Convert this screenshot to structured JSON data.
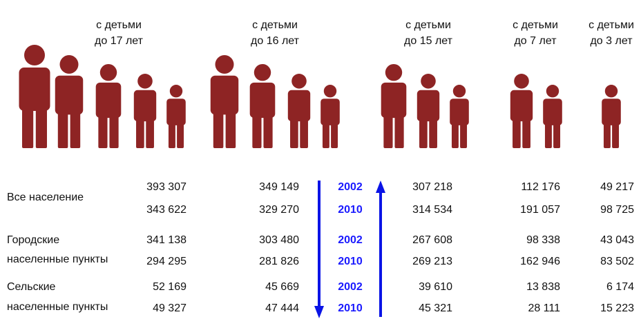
{
  "header": {
    "columns": [
      [
        "с детьми",
        "до 17 лет"
      ],
      [
        "с детьми",
        "до 16 лет"
      ],
      [
        "с детьми",
        "до 15 лет"
      ],
      [
        "с детьми",
        "до 7 лет"
      ],
      [
        "с детьми",
        "до 3 лет"
      ]
    ]
  },
  "rows": [
    {
      "label": [
        "Все население"
      ],
      "years": [
        "2002",
        "2010"
      ],
      "values": [
        [
          "393 307",
          "349 149",
          "307 218",
          "112 176",
          "49 217"
        ],
        [
          "343 622",
          "329 270",
          "314 534",
          "191 057",
          "98 725"
        ]
      ]
    },
    {
      "label": [
        "Городские",
        "населенные пункты"
      ],
      "years": [
        "2002",
        "2010"
      ],
      "values": [
        [
          "341 138",
          "303 480",
          "267 608",
          "98 338",
          "43 043"
        ],
        [
          "294 295",
          "281 826",
          "269 213",
          "162 946",
          "83 502"
        ]
      ]
    },
    {
      "label": [
        "Сельские",
        "населенные пункты"
      ],
      "years": [
        "2002",
        "2010"
      ],
      "values": [
        [
          "52 169",
          "45 669",
          "39 610",
          "13 838",
          "6 174"
        ],
        [
          "49 327",
          "47 444",
          "45 321",
          "28 111",
          "15 223"
        ]
      ]
    }
  ]
}
